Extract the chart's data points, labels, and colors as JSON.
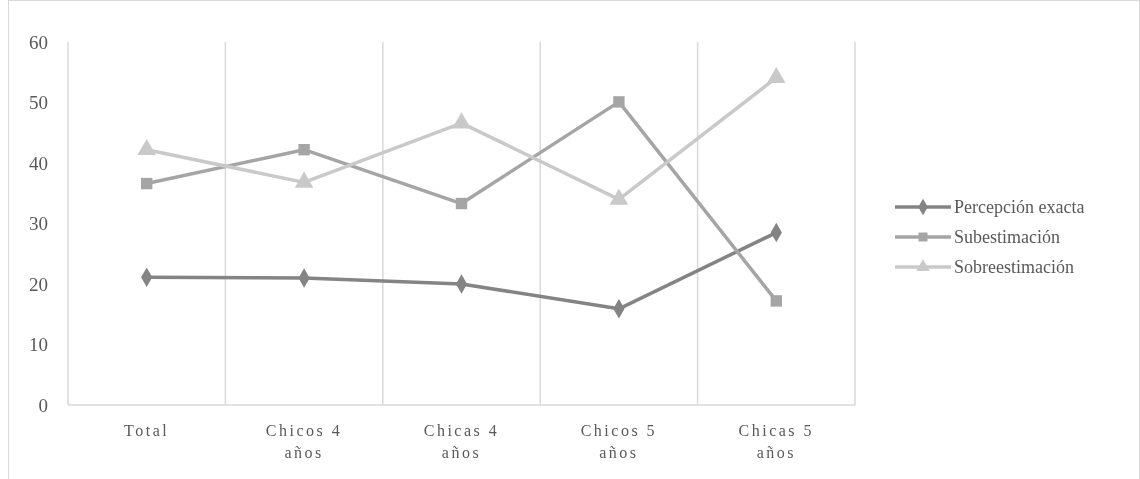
{
  "chart_data": {
    "type": "line",
    "categories": [
      "Total",
      "Chicos 4 años",
      "Chicas 4 años",
      "Chicos 5 años",
      "Chicas 5 años"
    ],
    "series": [
      {
        "name": "Percepción exacta",
        "color": "#848484",
        "marker": "diamond",
        "values": [
          21.1,
          21.0,
          20.0,
          15.9,
          28.5
        ]
      },
      {
        "name": "Subestimación",
        "color": "#a5a5a5",
        "marker": "square",
        "values": [
          36.6,
          42.2,
          33.3,
          50.1,
          17.2
        ]
      },
      {
        "name": "Sobreestimación",
        "color": "#c9c9c9",
        "marker": "triangle",
        "values": [
          42.2,
          36.8,
          46.6,
          34.0,
          54.1
        ]
      }
    ],
    "ylim": [
      0,
      60
    ],
    "yticks": [
      0,
      10,
      20,
      30,
      40,
      50,
      60
    ],
    "grid": "x",
    "legend": "right"
  }
}
